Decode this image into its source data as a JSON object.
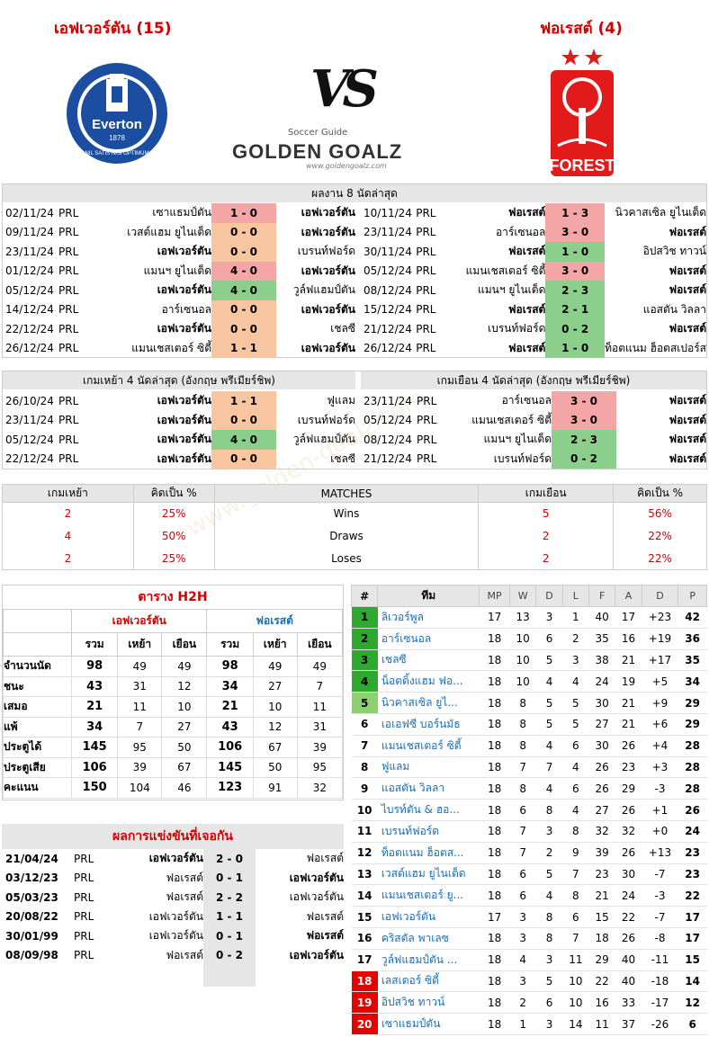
{
  "header": {
    "home_team": "เอฟเวอร์ตัน (15)",
    "away_team": "ฟอเรสต์ (4)",
    "vs": "VS",
    "brand_top": "Soccer Guide",
    "brand": "GOLDEN GOALZ",
    "brand_url": "www.goldengoalz.com",
    "home_crest": {
      "name": "Everton",
      "year": "1878",
      "motto": "NIL SATIS NISI OPTIMUM"
    },
    "away_crest": {
      "name": "FOREST"
    },
    "watermark": "www.golden-goalz.com"
  },
  "last8": {
    "title": "ผลงาน 8 นัดล่าสุด",
    "home": [
      [
        "02/11/24",
        "PRL",
        "เซาแธมป์ตัน",
        "1 - 0",
        "เอฟเวอร์ตัน",
        "r"
      ],
      [
        "09/11/24",
        "PRL",
        "เวสต์แฮม ยูไนเต็ด",
        "0 - 0",
        "เอฟเวอร์ตัน",
        "o"
      ],
      [
        "23/11/24",
        "PRL",
        "เอฟเวอร์ตัน",
        "0 - 0",
        "เบรนท์ฟอร์ด",
        "o"
      ],
      [
        "01/12/24",
        "PRL",
        "แมนฯ ยูไนเต็ด",
        "4 - 0",
        "เอฟเวอร์ตัน",
        "r"
      ],
      [
        "05/12/24",
        "PRL",
        "เอฟเวอร์ตัน",
        "4 - 0",
        "วูล์ฟแฮมป์ตัน",
        "g"
      ],
      [
        "14/12/24",
        "PRL",
        "อาร์เซนอล",
        "0 - 0",
        "เอฟเวอร์ตัน",
        "o"
      ],
      [
        "22/12/24",
        "PRL",
        "เอฟเวอร์ตัน",
        "0 - 0",
        "เชลซี",
        "o"
      ],
      [
        "26/12/24",
        "PRL",
        "แมนเชสเตอร์ ซิตี้",
        "1 - 1",
        "เอฟเวอร์ตัน",
        "o"
      ]
    ],
    "away": [
      [
        "10/11/24",
        "PRL",
        "ฟอเรสต์",
        "1 - 3",
        "นิวคาสเซิล ยูไนเต็ด",
        "r"
      ],
      [
        "23/11/24",
        "PRL",
        "อาร์เซนอล",
        "3 - 0",
        "ฟอเรสต์",
        "r"
      ],
      [
        "30/11/24",
        "PRL",
        "ฟอเรสต์",
        "1 - 0",
        "อิปสวิช ทาวน์",
        "g"
      ],
      [
        "05/12/24",
        "PRL",
        "แมนเชสเตอร์ ซิตี้",
        "3 - 0",
        "ฟอเรสต์",
        "r"
      ],
      [
        "08/12/24",
        "PRL",
        "แมนฯ ยูไนเต็ด",
        "2 - 3",
        "ฟอเรสต์",
        "g"
      ],
      [
        "15/12/24",
        "PRL",
        "ฟอเรสต์",
        "2 - 1",
        "แอสตัน วิลลา",
        "g"
      ],
      [
        "21/12/24",
        "PRL",
        "เบรนท์ฟอร์ด",
        "0 - 2",
        "ฟอเรสต์",
        "g"
      ],
      [
        "26/12/24",
        "PRL",
        "ฟอเรสต์",
        "1 - 0",
        "ท็อตแนม ฮ็อตสเปอร์ส",
        "g"
      ]
    ]
  },
  "last4": {
    "home_title": "เกมเหย้า 4 นัดล่าสุด (อังกฤษ พรีเมียร์ชิพ)",
    "away_title": "เกมเยือน 4 นัดล่าสุด (อังกฤษ พรีเมียร์ชิพ)",
    "home": [
      [
        "26/10/24",
        "PRL",
        "เอฟเวอร์ตัน",
        "1 - 1",
        "ฟูแลม",
        "o"
      ],
      [
        "23/11/24",
        "PRL",
        "เอฟเวอร์ตัน",
        "0 - 0",
        "เบรนท์ฟอร์ด",
        "o"
      ],
      [
        "05/12/24",
        "PRL",
        "เอฟเวอร์ตัน",
        "4 - 0",
        "วูล์ฟแฮมป์ตัน",
        "g"
      ],
      [
        "22/12/24",
        "PRL",
        "เอฟเวอร์ตัน",
        "0 - 0",
        "เชลซี",
        "o"
      ]
    ],
    "away": [
      [
        "23/11/24",
        "PRL",
        "อาร์เซนอล",
        "3 - 0",
        "ฟอเรสต์",
        "r"
      ],
      [
        "05/12/24",
        "PRL",
        "แมนเชสเตอร์ ซิตี้",
        "3 - 0",
        "ฟอเรสต์",
        "r"
      ],
      [
        "08/12/24",
        "PRL",
        "แมนฯ ยูไนเต็ด",
        "2 - 3",
        "ฟอเรสต์",
        "g"
      ],
      [
        "21/12/24",
        "PRL",
        "เบรนท์ฟอร์ด",
        "0 - 2",
        "ฟอเรสต์",
        "g"
      ]
    ]
  },
  "summary": {
    "h": [
      "เกมเหย้า",
      "คิดเป็น  %",
      "MATCHES",
      "เกมเยือน",
      "คิดเป็น  %"
    ],
    "rows": [
      [
        "2",
        "25%",
        "Wins",
        "5",
        "56%"
      ],
      [
        "4",
        "50%",
        "Draws",
        "2",
        "22%"
      ],
      [
        "2",
        "25%",
        "Loses",
        "2",
        "22%"
      ]
    ]
  },
  "h2h": {
    "title": "ตาราง H2H",
    "home": "เอฟเวอร์ตัน",
    "away": "ฟอเรสต์",
    "cols": [
      "รวม",
      "เหย้า",
      "เยือน",
      "รวม",
      "เหย้า",
      "เยือน"
    ],
    "rows": [
      [
        "จำนวนนัด",
        "98",
        "49",
        "49",
        "98",
        "49",
        "49"
      ],
      [
        "ชนะ",
        "43",
        "31",
        "12",
        "34",
        "27",
        "7"
      ],
      [
        "เสมอ",
        "21",
        "11",
        "10",
        "21",
        "10",
        "11"
      ],
      [
        "แพ้",
        "34",
        "7",
        "27",
        "43",
        "12",
        "31"
      ],
      [
        "ประตูได้",
        "145",
        "95",
        "50",
        "106",
        "67",
        "39"
      ],
      [
        "ประตูเสีย",
        "106",
        "39",
        "67",
        "145",
        "50",
        "95"
      ],
      [
        "คะแนน",
        "150",
        "104",
        "46",
        "123",
        "91",
        "32"
      ]
    ]
  },
  "meet": {
    "title": "ผลการแข่งขันที่เจอกัน",
    "rows": [
      [
        "21/04/24",
        "PRL",
        "เอฟเวอร์ตัน",
        "2 - 0",
        "ฟอเรสต์",
        "h"
      ],
      [
        "03/12/23",
        "PRL",
        "ฟอเรสต์",
        "0 - 1",
        "เอฟเวอร์ตัน",
        "a"
      ],
      [
        "05/03/23",
        "PRL",
        "ฟอเรสต์",
        "2 - 2",
        "เอฟเวอร์ตัน",
        ""
      ],
      [
        "20/08/22",
        "PRL",
        "เอฟเวอร์ตัน",
        "1 - 1",
        "ฟอเรสต์",
        ""
      ],
      [
        "30/01/99",
        "PRL",
        "เอฟเวอร์ตัน",
        "0 - 1",
        "ฟอเรสต์",
        "a"
      ],
      [
        "08/09/98",
        "PRL",
        "ฟอเรสต์",
        "0 - 2",
        "เอฟเวอร์ตัน",
        "a"
      ]
    ]
  },
  "league": {
    "h": [
      "#",
      "ทีม",
      "MP",
      "W",
      "D",
      "L",
      "F",
      "A",
      "D",
      "P"
    ],
    "colors": {
      "cl": "#2ea82e",
      "el": "#8cd16e",
      "rel": "#e60000"
    },
    "rows": [
      [
        "1",
        "ลิเวอร์พูล",
        "17",
        "13",
        "3",
        "1",
        "40",
        "17",
        "+23",
        "42",
        "cl"
      ],
      [
        "2",
        "อาร์เซนอล",
        "18",
        "10",
        "6",
        "2",
        "35",
        "16",
        "+19",
        "36",
        "cl"
      ],
      [
        "3",
        "เชลซี",
        "18",
        "10",
        "5",
        "3",
        "38",
        "21",
        "+17",
        "35",
        "cl"
      ],
      [
        "4",
        "น็อตติ้งแฮม ฟอ...",
        "18",
        "10",
        "4",
        "4",
        "24",
        "19",
        "+5",
        "34",
        "cl"
      ],
      [
        "5",
        "นิวคาสเซิล ยูไ...",
        "18",
        "8",
        "5",
        "5",
        "30",
        "21",
        "+9",
        "29",
        "el"
      ],
      [
        "6",
        "เอเอฟซี บอร์นมัธ",
        "18",
        "8",
        "5",
        "5",
        "27",
        "21",
        "+6",
        "29",
        ""
      ],
      [
        "7",
        "แมนเชสเตอร์ ซิตี้",
        "18",
        "8",
        "4",
        "6",
        "30",
        "26",
        "+4",
        "28",
        ""
      ],
      [
        "8",
        "ฟูแลม",
        "18",
        "7",
        "7",
        "4",
        "26",
        "23",
        "+3",
        "28",
        ""
      ],
      [
        "9",
        "แอสตัน วิลลา",
        "18",
        "8",
        "4",
        "6",
        "26",
        "29",
        "-3",
        "28",
        ""
      ],
      [
        "10",
        "ไบรท์ตัน & ฮอ...",
        "18",
        "6",
        "8",
        "4",
        "27",
        "26",
        "+1",
        "26",
        ""
      ],
      [
        "11",
        "เบรนท์ฟอร์ด",
        "18",
        "7",
        "3",
        "8",
        "32",
        "32",
        "+0",
        "24",
        ""
      ],
      [
        "12",
        "ท็อตแนม ฮ็อตส...",
        "18",
        "7",
        "2",
        "9",
        "39",
        "26",
        "+13",
        "23",
        ""
      ],
      [
        "13",
        "เวสต์แฮม ยูไนเต็ด",
        "18",
        "6",
        "5",
        "7",
        "23",
        "30",
        "-7",
        "23",
        ""
      ],
      [
        "14",
        "แมนเชสเตอร์ ยู...",
        "18",
        "6",
        "4",
        "8",
        "21",
        "24",
        "-3",
        "22",
        ""
      ],
      [
        "15",
        "เอฟเวอร์ตัน",
        "17",
        "3",
        "8",
        "6",
        "15",
        "22",
        "-7",
        "17",
        ""
      ],
      [
        "16",
        "คริสตัล พาเลซ",
        "18",
        "3",
        "8",
        "7",
        "18",
        "26",
        "-8",
        "17",
        ""
      ],
      [
        "17",
        "วูล์ฟแฮมป์ตัน ...",
        "18",
        "4",
        "3",
        "11",
        "29",
        "40",
        "-11",
        "15",
        ""
      ],
      [
        "18",
        "เลสเตอร์ ซิตี้",
        "18",
        "3",
        "5",
        "10",
        "22",
        "40",
        "-18",
        "14",
        "rel"
      ],
      [
        "19",
        "อิปสวิช ทาวน์",
        "18",
        "2",
        "6",
        "10",
        "16",
        "33",
        "-17",
        "12",
        "rel"
      ],
      [
        "20",
        "เซาแธมป์ตัน",
        "18",
        "1",
        "3",
        "14",
        "11",
        "37",
        "-26",
        "6",
        "rel"
      ]
    ]
  }
}
